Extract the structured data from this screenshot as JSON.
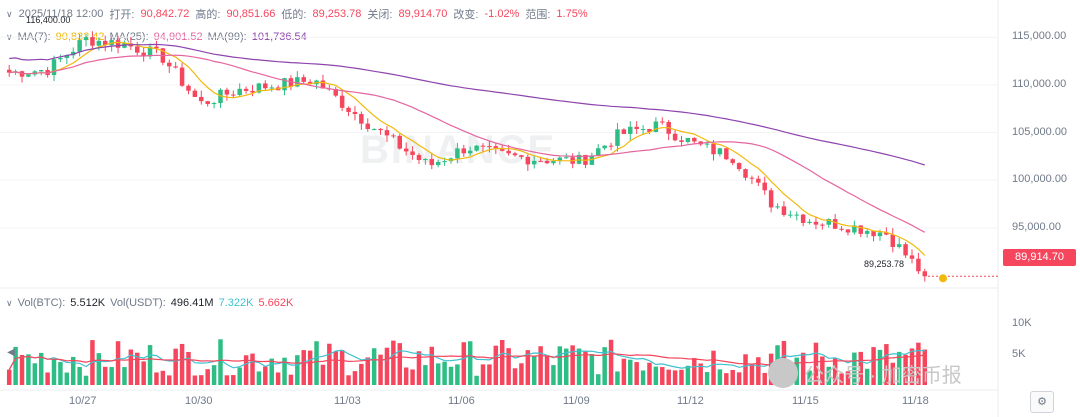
{
  "header": {
    "datetime": "2025/11/18 12:00",
    "open_label": "打开:",
    "open": "90,842.72",
    "high_label": "高的:",
    "high": "90,851.66",
    "low_label": "低的:",
    "low": "89,253.78",
    "close_label": "关闭:",
    "close": "89,914.70",
    "change_label": "改变:",
    "change": "-1.02%",
    "range_label": "范围:",
    "range": "1.75%"
  },
  "ma": {
    "ma7_label": "MA(7):",
    "ma7": "90,832.42",
    "ma25_label": "MA(25):",
    "ma25": "94,901.52",
    "ma99_label": "MA(99):",
    "ma99": "101,736.54"
  },
  "volume": {
    "btc_label": "Vol(BTC):",
    "btc": "5.512K",
    "usdt_label": "Vol(USDT):",
    "usdt": "496.41M",
    "ma_a": "7.322K",
    "ma_b": "5.662K"
  },
  "price_axis": [
    "115,000.00",
    "110,000.00",
    "105,000.00",
    "100,000.00",
    "95,000.00"
  ],
  "volume_axis": [
    "10K",
    "5K"
  ],
  "date_axis": [
    "10/27",
    "10/30",
    "11/03",
    "11/06",
    "11/09",
    "11/12",
    "11/15",
    "11/18"
  ],
  "current_price": "89,914.70",
  "high_marker": "116,400.00",
  "low_marker": "89,253.78",
  "watermark": "公众号 · 加密币报",
  "background_logo": "BINANCE",
  "colors": {
    "up": "#2ebd85",
    "down": "#f6465d",
    "ma7": "#f0b90b",
    "ma25": "#e5659f",
    "ma99": "#8e44ad",
    "volma": "#3fc1d0"
  },
  "chart_data": {
    "type": "candlestick",
    "interval": "4h",
    "y_range": [
      89000,
      116600
    ],
    "current": 89914.7,
    "ohlc_anchors": [
      {
        "label": "10/25",
        "close": 111300
      },
      {
        "label": "10/26",
        "close": 111600
      },
      {
        "label": "10/27",
        "close": 114800
      },
      {
        "label": "10/28",
        "close": 114300
      },
      {
        "label": "10/29",
        "close": 113000
      },
      {
        "label": "10/30",
        "close": 108000
      },
      {
        "label": "10/31",
        "close": 109500
      },
      {
        "label": "11/01",
        "close": 110000
      },
      {
        "label": "11/02",
        "close": 110500
      },
      {
        "label": "11/03",
        "close": 107200
      },
      {
        "label": "11/04",
        "close": 104200
      },
      {
        "label": "11/05",
        "close": 101500
      },
      {
        "label": "11/06",
        "close": 103500
      },
      {
        "label": "11/07",
        "close": 102500
      },
      {
        "label": "11/08",
        "close": 102200
      },
      {
        "label": "11/09",
        "close": 102000
      },
      {
        "label": "11/10",
        "close": 104800
      },
      {
        "label": "11/11",
        "close": 105800
      },
      {
        "label": "11/12",
        "close": 103700
      },
      {
        "label": "11/13",
        "close": 102400
      },
      {
        "label": "11/14",
        "close": 97500
      },
      {
        "label": "11/15",
        "close": 95800
      },
      {
        "label": "11/16",
        "close": 95200
      },
      {
        "label": "11/17",
        "close": 94400
      },
      {
        "label": "11/18",
        "close": 89914.7
      }
    ]
  }
}
